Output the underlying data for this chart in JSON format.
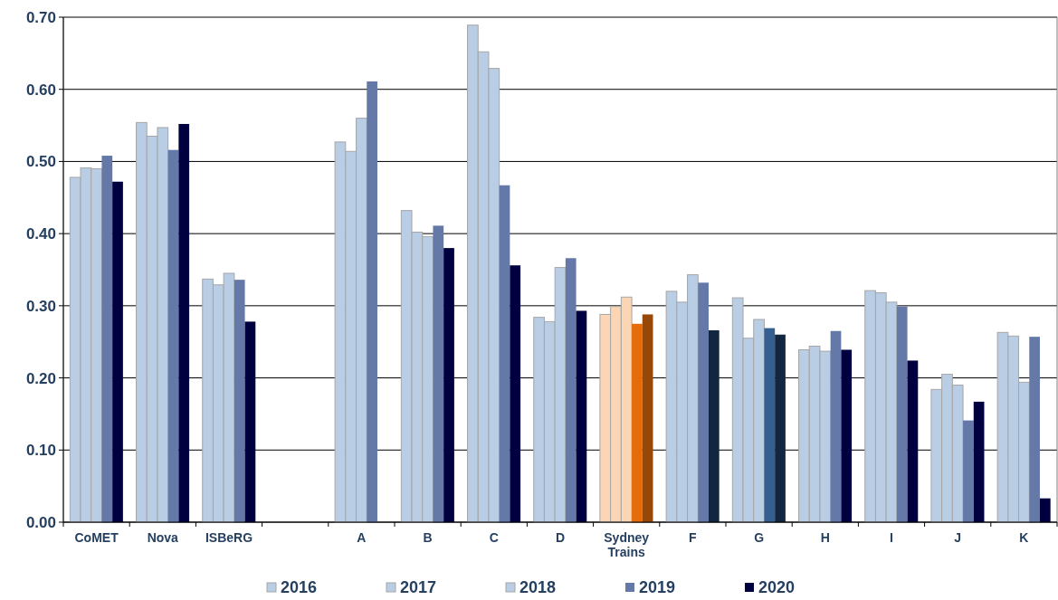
{
  "chart_data": {
    "type": "bar",
    "categories": [
      "CoMET",
      "Nova",
      "ISBeRG",
      null,
      "A",
      "B",
      "C",
      "D",
      "Sydney Trains",
      "F",
      "G",
      "H",
      "I",
      "J",
      "K"
    ],
    "series": [
      {
        "name": "2016",
        "color": "#b9cde5",
        "colors": [
          "#b9cde5",
          "#b9cde5",
          "#b9cde5",
          null,
          "#b9cde5",
          "#b9cde5",
          "#b9cde5",
          "#b9cde5",
          "#fcd5b4",
          "#b9cde5",
          "#b9cde5",
          "#b9cde5",
          "#b9cde5",
          "#b9cde5",
          "#b9cde5"
        ],
        "values": [
          0.478,
          0.554,
          0.337,
          null,
          0.527,
          0.432,
          0.689,
          0.284,
          0.288,
          0.32,
          0.311,
          0.239,
          0.321,
          0.184,
          0.263
        ]
      },
      {
        "name": "2017",
        "color": "#b9cde5",
        "colors": [
          "#b9cde5",
          "#b9cde5",
          "#b9cde5",
          null,
          "#b9cde5",
          "#b9cde5",
          "#b9cde5",
          "#b9cde5",
          "#fcd5b4",
          "#b9cde5",
          "#b9cde5",
          "#b9cde5",
          "#b9cde5",
          "#b9cde5",
          "#b9cde5"
        ],
        "values": [
          0.491,
          0.535,
          0.329,
          null,
          0.514,
          0.402,
          0.652,
          0.278,
          0.299,
          0.305,
          0.255,
          0.244,
          0.318,
          0.205,
          0.258
        ]
      },
      {
        "name": "2018",
        "color": "#b9cde5",
        "colors": [
          "#b9cde5",
          "#b9cde5",
          "#b9cde5",
          null,
          "#b9cde5",
          "#b9cde5",
          "#b9cde5",
          "#b9cde5",
          "#fcd5b4",
          "#b9cde5",
          "#b9cde5",
          "#b9cde5",
          "#b9cde5",
          "#b9cde5",
          "#b9cde5"
        ],
        "values": [
          0.49,
          0.547,
          0.345,
          null,
          0.56,
          0.396,
          0.629,
          0.353,
          0.312,
          0.343,
          0.281,
          0.237,
          0.305,
          0.19,
          0.194
        ]
      },
      {
        "name": "2019",
        "color": "#6479a8",
        "colors": [
          "#6479a8",
          "#6479a8",
          "#6479a8",
          null,
          "#6479a8",
          "#6479a8",
          "#6479a8",
          "#6479a8",
          "#e46c0a",
          "#6479a8",
          "#355f91",
          "#6479a8",
          "#6479a8",
          "#6479a8",
          "#6479a8"
        ],
        "values": [
          0.508,
          0.516,
          0.336,
          null,
          0.611,
          0.411,
          0.467,
          0.366,
          0.275,
          0.332,
          0.269,
          0.265,
          0.299,
          0.141,
          0.257
        ]
      },
      {
        "name": "2020",
        "color": "#000040",
        "colors": [
          "#000040",
          "#000040",
          "#000040",
          null,
          null,
          "#000040",
          "#000040",
          "#000040",
          "#974806",
          "#12263f",
          "#12263f",
          "#000040",
          "#000040",
          "#000040",
          "#000040"
        ],
        "values": [
          0.472,
          0.552,
          0.278,
          null,
          null,
          0.38,
          0.356,
          0.293,
          0.288,
          0.266,
          0.26,
          0.239,
          0.224,
          0.167,
          0.033
        ]
      }
    ],
    "ylim": [
      0,
      0.7
    ],
    "yticks": [
      {
        "value": 0,
        "label": "0.00"
      },
      {
        "value": 0.1,
        "label": "0.10"
      },
      {
        "value": 0.2,
        "label": "0.20"
      },
      {
        "value": 0.3,
        "label": "0.30"
      },
      {
        "value": 0.4,
        "label": "0.40"
      },
      {
        "value": 0.5,
        "label": "0.50"
      },
      {
        "value": 0.6,
        "label": "0.60"
      },
      {
        "value": 0.7,
        "label": "0.70"
      }
    ],
    "grid": "y",
    "legend": "bottom"
  }
}
